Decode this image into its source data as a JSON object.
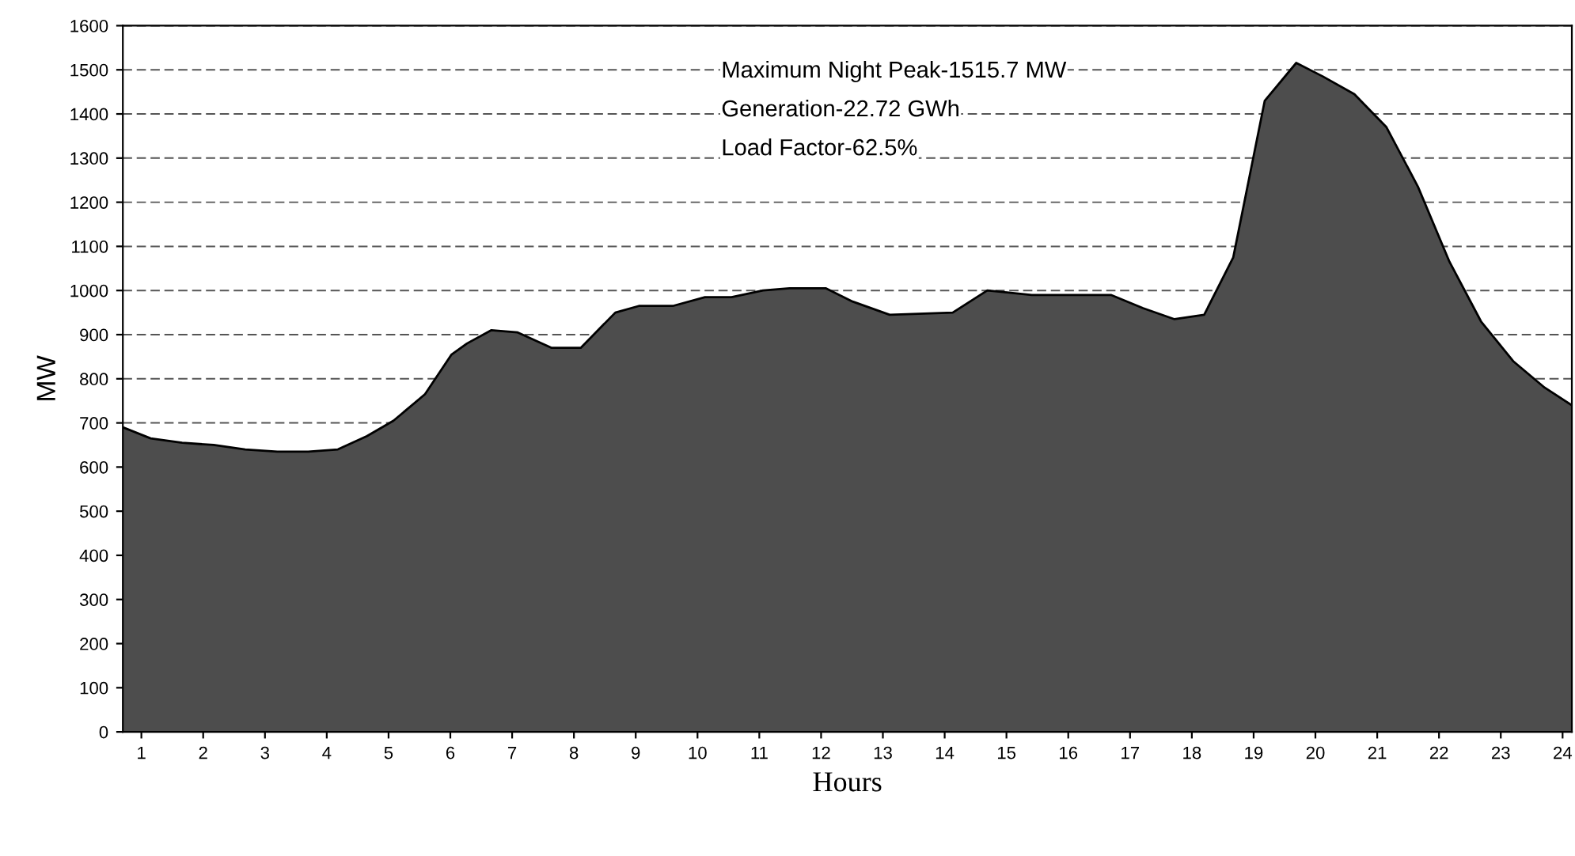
{
  "chart_data": {
    "type": "area",
    "xlabel": "Hours",
    "ylabel": "MW",
    "annotations": [
      "Maximum Night Peak-1515.7 MW",
      "Generation-22.72 GWh",
      "Load Factor-62.5%"
    ],
    "xlim": [
      0.7,
      24.15
    ],
    "xticks": [
      1,
      2,
      3,
      4,
      5,
      6,
      7,
      8,
      9,
      10,
      11,
      12,
      13,
      14,
      15,
      16,
      17,
      18,
      19,
      20,
      21,
      22,
      23,
      24
    ],
    "ylim": [
      0,
      1600
    ],
    "yticks": [
      0,
      100,
      200,
      300,
      400,
      500,
      600,
      700,
      800,
      900,
      1000,
      1100,
      1200,
      1300,
      1400,
      1500,
      1600
    ],
    "grid": "y",
    "legend": false,
    "series": [
      {
        "color": "#4d4d4d",
        "x": [
          0.7,
          1.15,
          1.66,
          2.17,
          2.68,
          3.2,
          3.7,
          4.18,
          4.65,
          5.08,
          5.59,
          6.02,
          6.27,
          6.66,
          7.09,
          7.64,
          8.11,
          8.67,
          9.05,
          9.6,
          10.12,
          10.55,
          11.06,
          11.49,
          12.08,
          12.51,
          13.11,
          14.13,
          14.69,
          15.41,
          16.69,
          17.21,
          17.72,
          18.2,
          18.67,
          19.18,
          19.69,
          20.12,
          20.63,
          21.15,
          21.66,
          22.17,
          22.68,
          23.2,
          23.71,
          24.15
        ],
        "values": [
          690,
          665,
          655,
          650,
          640,
          635,
          635,
          640,
          670,
          705,
          765,
          855,
          880,
          910,
          905,
          870,
          870,
          950,
          965,
          965,
          985,
          985,
          1000,
          1005,
          1005,
          975,
          945,
          950,
          1000,
          990,
          990,
          960,
          935,
          945,
          1075,
          1430,
          1515.7,
          1485,
          1445,
          1370,
          1235,
          1065,
          930,
          840,
          780,
          740
        ]
      }
    ]
  }
}
